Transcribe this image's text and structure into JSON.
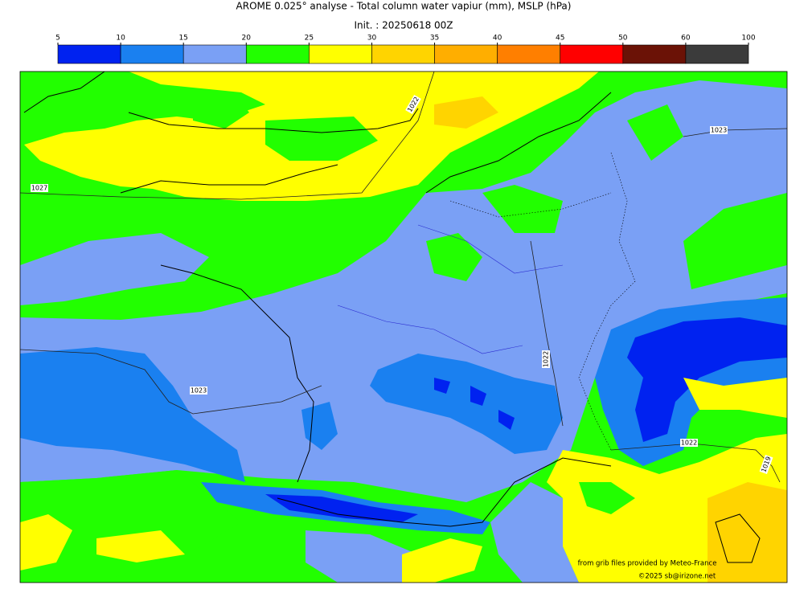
{
  "header": {
    "title": "AROME 0.025° analyse - Total column water vapiur (mm), MSLP (hPa)",
    "init": "Init. : 20250618 00Z"
  },
  "colorbar": {
    "ticks": [
      5,
      10,
      15,
      20,
      25,
      30,
      35,
      40,
      45,
      50,
      60,
      100
    ],
    "colors": [
      "#0022f0",
      "#1a80f0",
      "#7aa0f5",
      "#22ff00",
      "#ffff00",
      "#ffd400",
      "#ffae00",
      "#ff7f00",
      "#ff0000",
      "#6b1206",
      "#3b3b3b"
    ]
  },
  "isobar_labels": [
    1027,
    1022,
    1023,
    1023,
    1022,
    1022,
    1019
  ],
  "credits": [
    "from grib files provided by  Meteo-France",
    "©2025 sb@irizone.net"
  ]
}
